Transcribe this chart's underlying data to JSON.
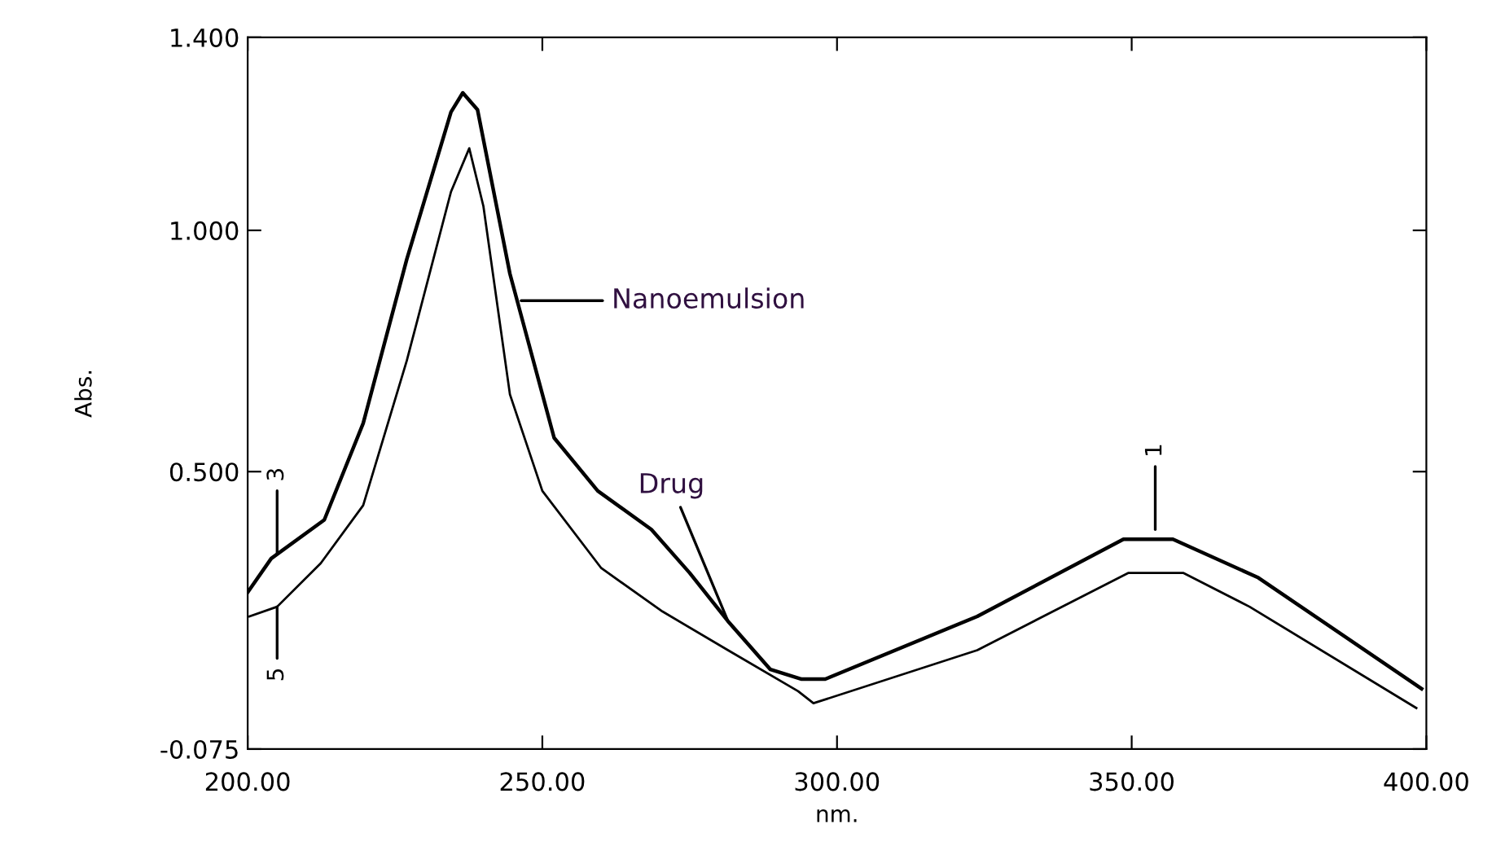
{
  "chart_data": {
    "type": "line",
    "xlabel": "nm.",
    "ylabel": "Abs.",
    "xlim": [
      200,
      400
    ],
    "ylim": [
      -0.075,
      1.4
    ],
    "xticks": [
      {
        "value": 200,
        "label": "200.00"
      },
      {
        "value": 250,
        "label": "250.00"
      },
      {
        "value": 300,
        "label": "300.00"
      },
      {
        "value": 350,
        "label": "350.00"
      },
      {
        "value": 400,
        "label": "400.00"
      }
    ],
    "yticks": [
      {
        "value": -0.075,
        "label": "-0.075"
      },
      {
        "value": 0.5,
        "label": "0.500"
      },
      {
        "value": 1.0,
        "label": "1.000"
      },
      {
        "value": 1.4,
        "label": "1.400"
      }
    ],
    "grid": false,
    "legend": false,
    "marker": "none",
    "line_style": "solid",
    "series": [
      {
        "color": "#000000",
        "x": [
          200,
          204,
          213,
          219.6,
          227,
          234.5,
          236.5,
          239,
          244.5,
          252,
          259.4,
          268.5,
          275,
          281.5,
          288.7,
          294,
          298,
          323.8,
          348.6,
          357,
          371.5,
          399.2
        ],
        "values": [
          0.25,
          0.32,
          0.4,
          0.6,
          0.94,
          1.245,
          1.285,
          1.25,
          0.91,
          0.57,
          0.46,
          0.38,
          0.29,
          0.19,
          0.09,
          0.07,
          0.07,
          0.2,
          0.36,
          0.36,
          0.28,
          0.05
        ]
      },
      {
        "color": "#000000",
        "x": [
          200.3,
          205,
          212.4,
          219.6,
          227,
          234.5,
          237.6,
          240,
          244.5,
          250,
          260,
          270.4,
          281.5,
          293.4,
          296,
          323.8,
          349.4,
          358.8,
          370,
          398.3
        ],
        "values": [
          0.2,
          0.22,
          0.31,
          0.43,
          0.73,
          1.08,
          1.17,
          1.05,
          0.66,
          0.46,
          0.3,
          0.21,
          0.13,
          0.045,
          0.02,
          0.13,
          0.29,
          0.29,
          0.22,
          0.01
        ]
      }
    ],
    "annotations": [
      "Nanoemulsion",
      {
        "text": "Drug",
        "x": 281.5,
        "y": 0.19
      },
      {
        "text": "1",
        "x": 354,
        "y": 0.38
      },
      {
        "text": "3",
        "x": 205,
        "y": 0.33
      },
      {
        "text": "5",
        "x": 205,
        "y": 0.22
      }
    ]
  }
}
